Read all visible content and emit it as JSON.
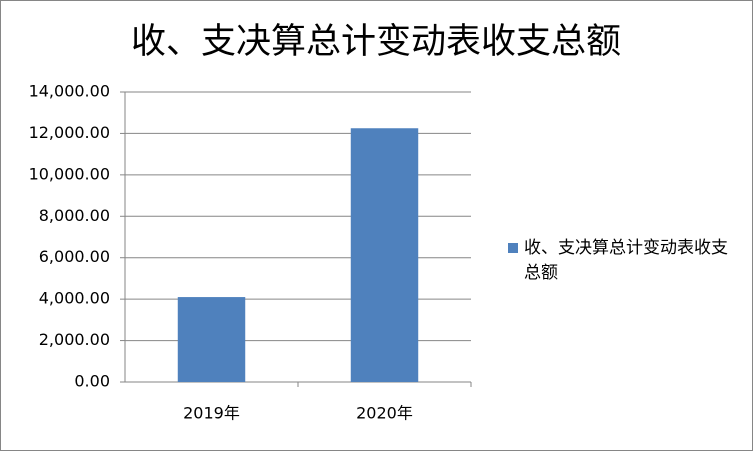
{
  "chart_data": {
    "type": "bar",
    "title": "收、支决算总计变动表收支总额",
    "categories": [
      "2019年",
      "2020年"
    ],
    "series": [
      {
        "name": "收、支决算总计变动表收支总额",
        "color": "#4f81bd",
        "values": [
          4100,
          12250
        ]
      }
    ],
    "ylim": [
      0,
      14000
    ],
    "yticks": [
      {
        "value": 0,
        "label": "0.00"
      },
      {
        "value": 2000,
        "label": "2,000.00"
      },
      {
        "value": 4000,
        "label": "4,000.00"
      },
      {
        "value": 6000,
        "label": "6,000.00"
      },
      {
        "value": 8000,
        "label": "8,000.00"
      },
      {
        "value": 10000,
        "label": "10,000.00"
      },
      {
        "value": 12000,
        "label": "12,000.00"
      },
      {
        "value": 14000,
        "label": "14,000.00"
      }
    ],
    "grid": true,
    "legend": "right"
  }
}
